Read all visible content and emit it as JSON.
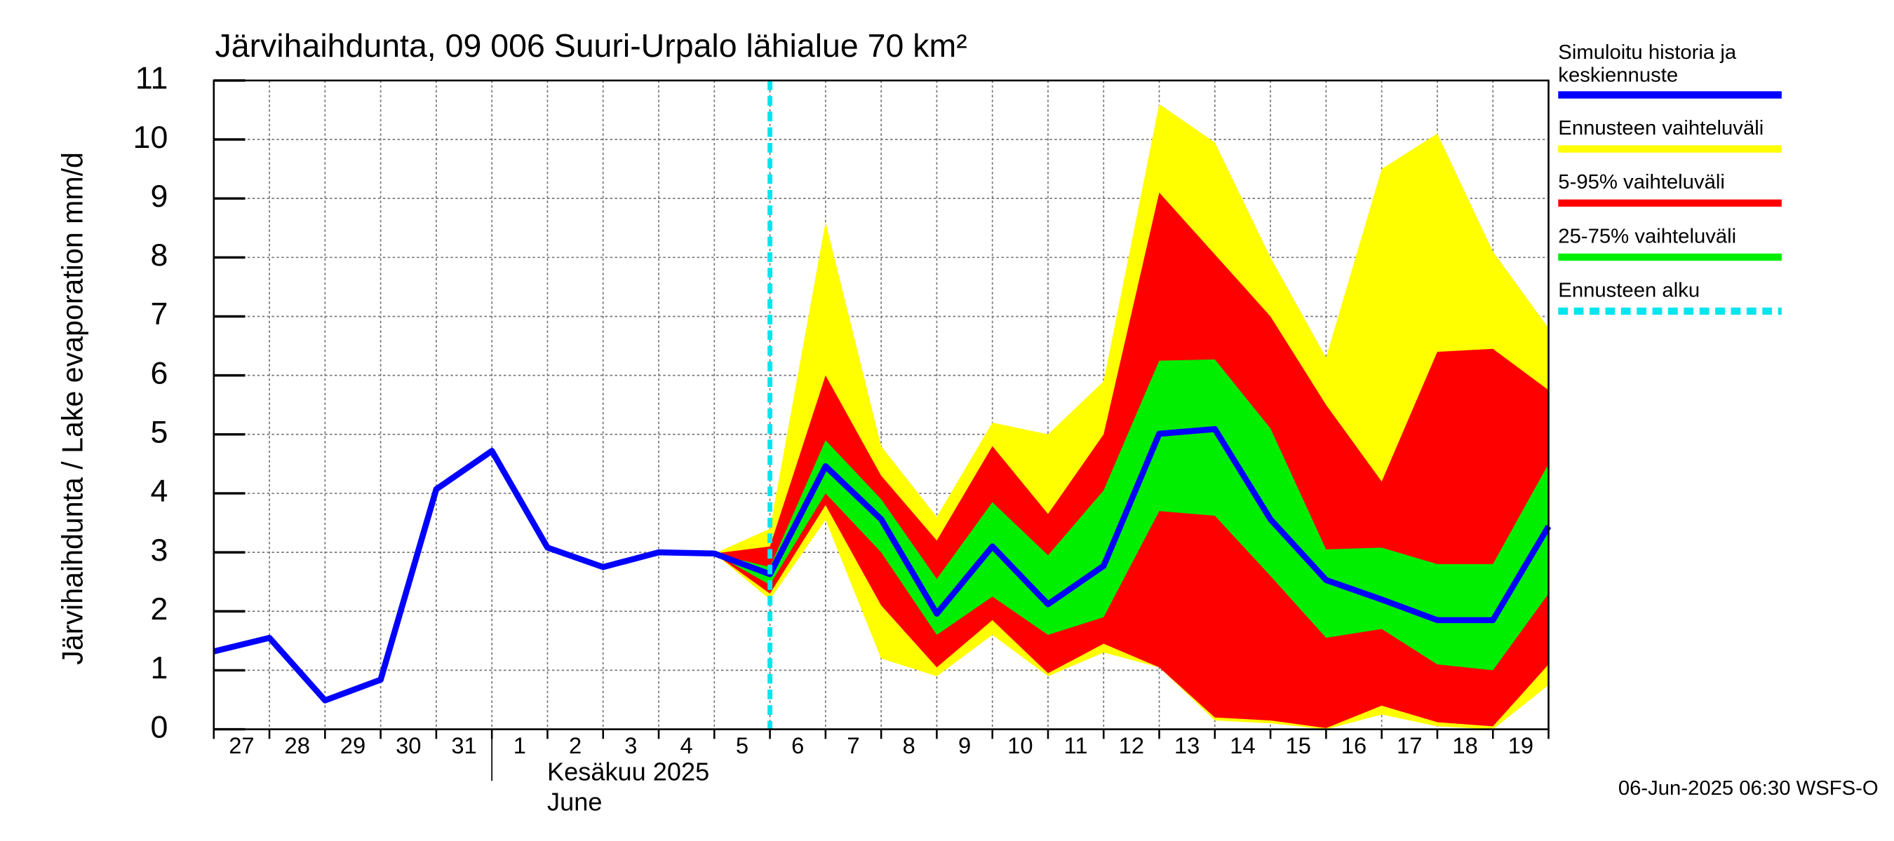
{
  "chart_data": {
    "type": "line",
    "title": "Järvihaihdunta, 09 006 Suuri-Urpalo lähialue 70 km²",
    "ylabel": "Järvihaihdunta / Lake evaporation   mm/d",
    "month_label": "Kesäkuu  2025",
    "month_label_en": "June",
    "footer": "06-Jun-2025 06:30 WSFS-O",
    "x": [
      "2025-05-27",
      "2025-05-28",
      "2025-05-29",
      "2025-05-30",
      "2025-05-31",
      "2025-06-01",
      "2025-06-02",
      "2025-06-03",
      "2025-06-04",
      "2025-06-05",
      "2025-06-06",
      "2025-06-07",
      "2025-06-08",
      "2025-06-09",
      "2025-06-10",
      "2025-06-11",
      "2025-06-12",
      "2025-06-13",
      "2025-06-14",
      "2025-06-15",
      "2025-06-16",
      "2025-06-17",
      "2025-06-18",
      "2025-06-19",
      "2025-06-20"
    ],
    "xlim": [
      "2025-05-27",
      "2025-06-20"
    ],
    "day_labels": [
      "27",
      "28",
      "29",
      "30",
      "31",
      "1",
      "2",
      "3",
      "4",
      "5",
      "6",
      "7",
      "8",
      "9",
      "10",
      "11",
      "12",
      "13",
      "14",
      "15",
      "16",
      "17",
      "18",
      "19"
    ],
    "month_start": "2025-06-01",
    "ylim": [
      0,
      11
    ],
    "yticks": [
      0,
      1,
      2,
      3,
      4,
      5,
      6,
      7,
      8,
      9,
      10,
      11
    ],
    "grid": true,
    "series": [
      {
        "name": "Simuloitu historia ja keskiennuste",
        "color": "#0000ff",
        "values": [
          1.32,
          1.55,
          0.49,
          0.84,
          4.07,
          4.72,
          3.08,
          2.75,
          3.0,
          2.98,
          2.63,
          4.46,
          3.56,
          1.96,
          3.1,
          2.12,
          2.77,
          5.01,
          5.09,
          3.56,
          2.53,
          2.2,
          1.85,
          1.85,
          3.44
        ]
      },
      {
        "name": "Ennusteen vaihteluväli",
        "color": "#ffff00",
        "lower": [
          null,
          null,
          null,
          null,
          null,
          null,
          null,
          null,
          null,
          2.98,
          2.2,
          3.55,
          1.2,
          0.9,
          1.6,
          0.9,
          1.3,
          1.05,
          0.15,
          0.1,
          0.0,
          0.25,
          0.05,
          0.0,
          0.75
        ],
        "upper": [
          null,
          null,
          null,
          null,
          null,
          null,
          null,
          null,
          null,
          2.98,
          3.4,
          8.6,
          4.8,
          3.6,
          5.2,
          5.0,
          5.9,
          10.6,
          9.95,
          8.0,
          6.3,
          9.5,
          10.1,
          8.1,
          6.8
        ]
      },
      {
        "name": "5-95% vaihteluväli",
        "color": "#ff0000",
        "lower": [
          null,
          null,
          null,
          null,
          null,
          null,
          null,
          null,
          null,
          2.98,
          2.3,
          3.8,
          2.1,
          1.05,
          1.85,
          0.95,
          1.45,
          1.05,
          0.2,
          0.15,
          0.02,
          0.4,
          0.12,
          0.05,
          1.1
        ],
        "upper": [
          null,
          null,
          null,
          null,
          null,
          null,
          null,
          null,
          null,
          2.98,
          3.1,
          6.0,
          4.3,
          3.2,
          4.8,
          3.65,
          5.0,
          9.1,
          8.05,
          7.0,
          5.5,
          4.2,
          6.4,
          6.45,
          5.75
        ]
      },
      {
        "name": "25-75% vaihteluväli",
        "color": "#00ee00",
        "lower": [
          null,
          null,
          null,
          null,
          null,
          null,
          null,
          null,
          null,
          2.98,
          2.45,
          4.0,
          3.0,
          1.6,
          2.25,
          1.6,
          1.9,
          3.7,
          3.62,
          2.6,
          1.55,
          1.7,
          1.1,
          1.0,
          2.3
        ],
        "upper": [
          null,
          null,
          null,
          null,
          null,
          null,
          null,
          null,
          null,
          2.98,
          2.75,
          4.9,
          3.9,
          2.55,
          3.85,
          2.95,
          4.05,
          6.25,
          6.27,
          5.1,
          3.05,
          3.08,
          2.8,
          2.8,
          4.5
        ]
      }
    ],
    "forecast_start": {
      "name": "Ennusteen alku",
      "color": "#00e5ee",
      "x": "2025-06-06"
    }
  }
}
